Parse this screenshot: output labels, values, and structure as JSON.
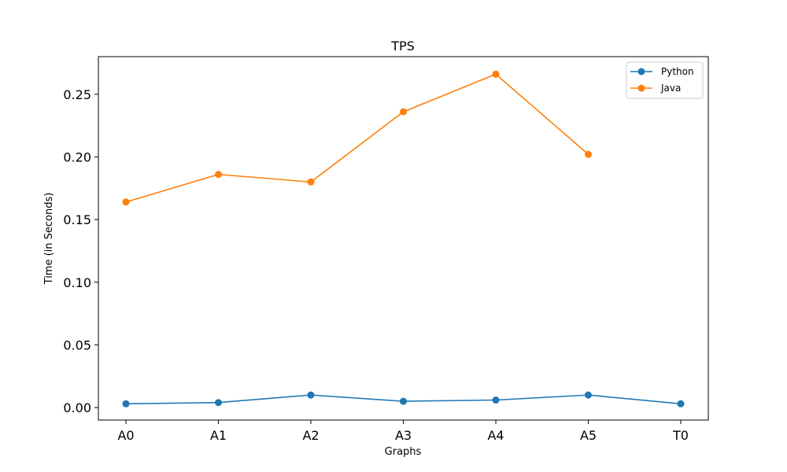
{
  "chart_data": {
    "type": "line",
    "title": "TPS",
    "xlabel": "Graphs",
    "ylabel": "Time (in Seconds)",
    "categories": [
      "A0",
      "A1",
      "A2",
      "A3",
      "A4",
      "A5",
      "T0"
    ],
    "ylim": [
      -0.01,
      0.28
    ],
    "yticks": [
      "0.00",
      "0.05",
      "0.10",
      "0.15",
      "0.20",
      "0.25"
    ],
    "grid": false,
    "legend_position": "top-right",
    "series": [
      {
        "name": "Python",
        "color": "#1f77b4",
        "values": [
          0.003,
          0.004,
          0.01,
          0.005,
          0.006,
          0.01,
          0.003
        ]
      },
      {
        "name": "Java",
        "color": "#ff7f0e",
        "values": [
          0.164,
          0.186,
          0.18,
          0.236,
          0.266,
          0.202,
          null
        ]
      }
    ]
  }
}
